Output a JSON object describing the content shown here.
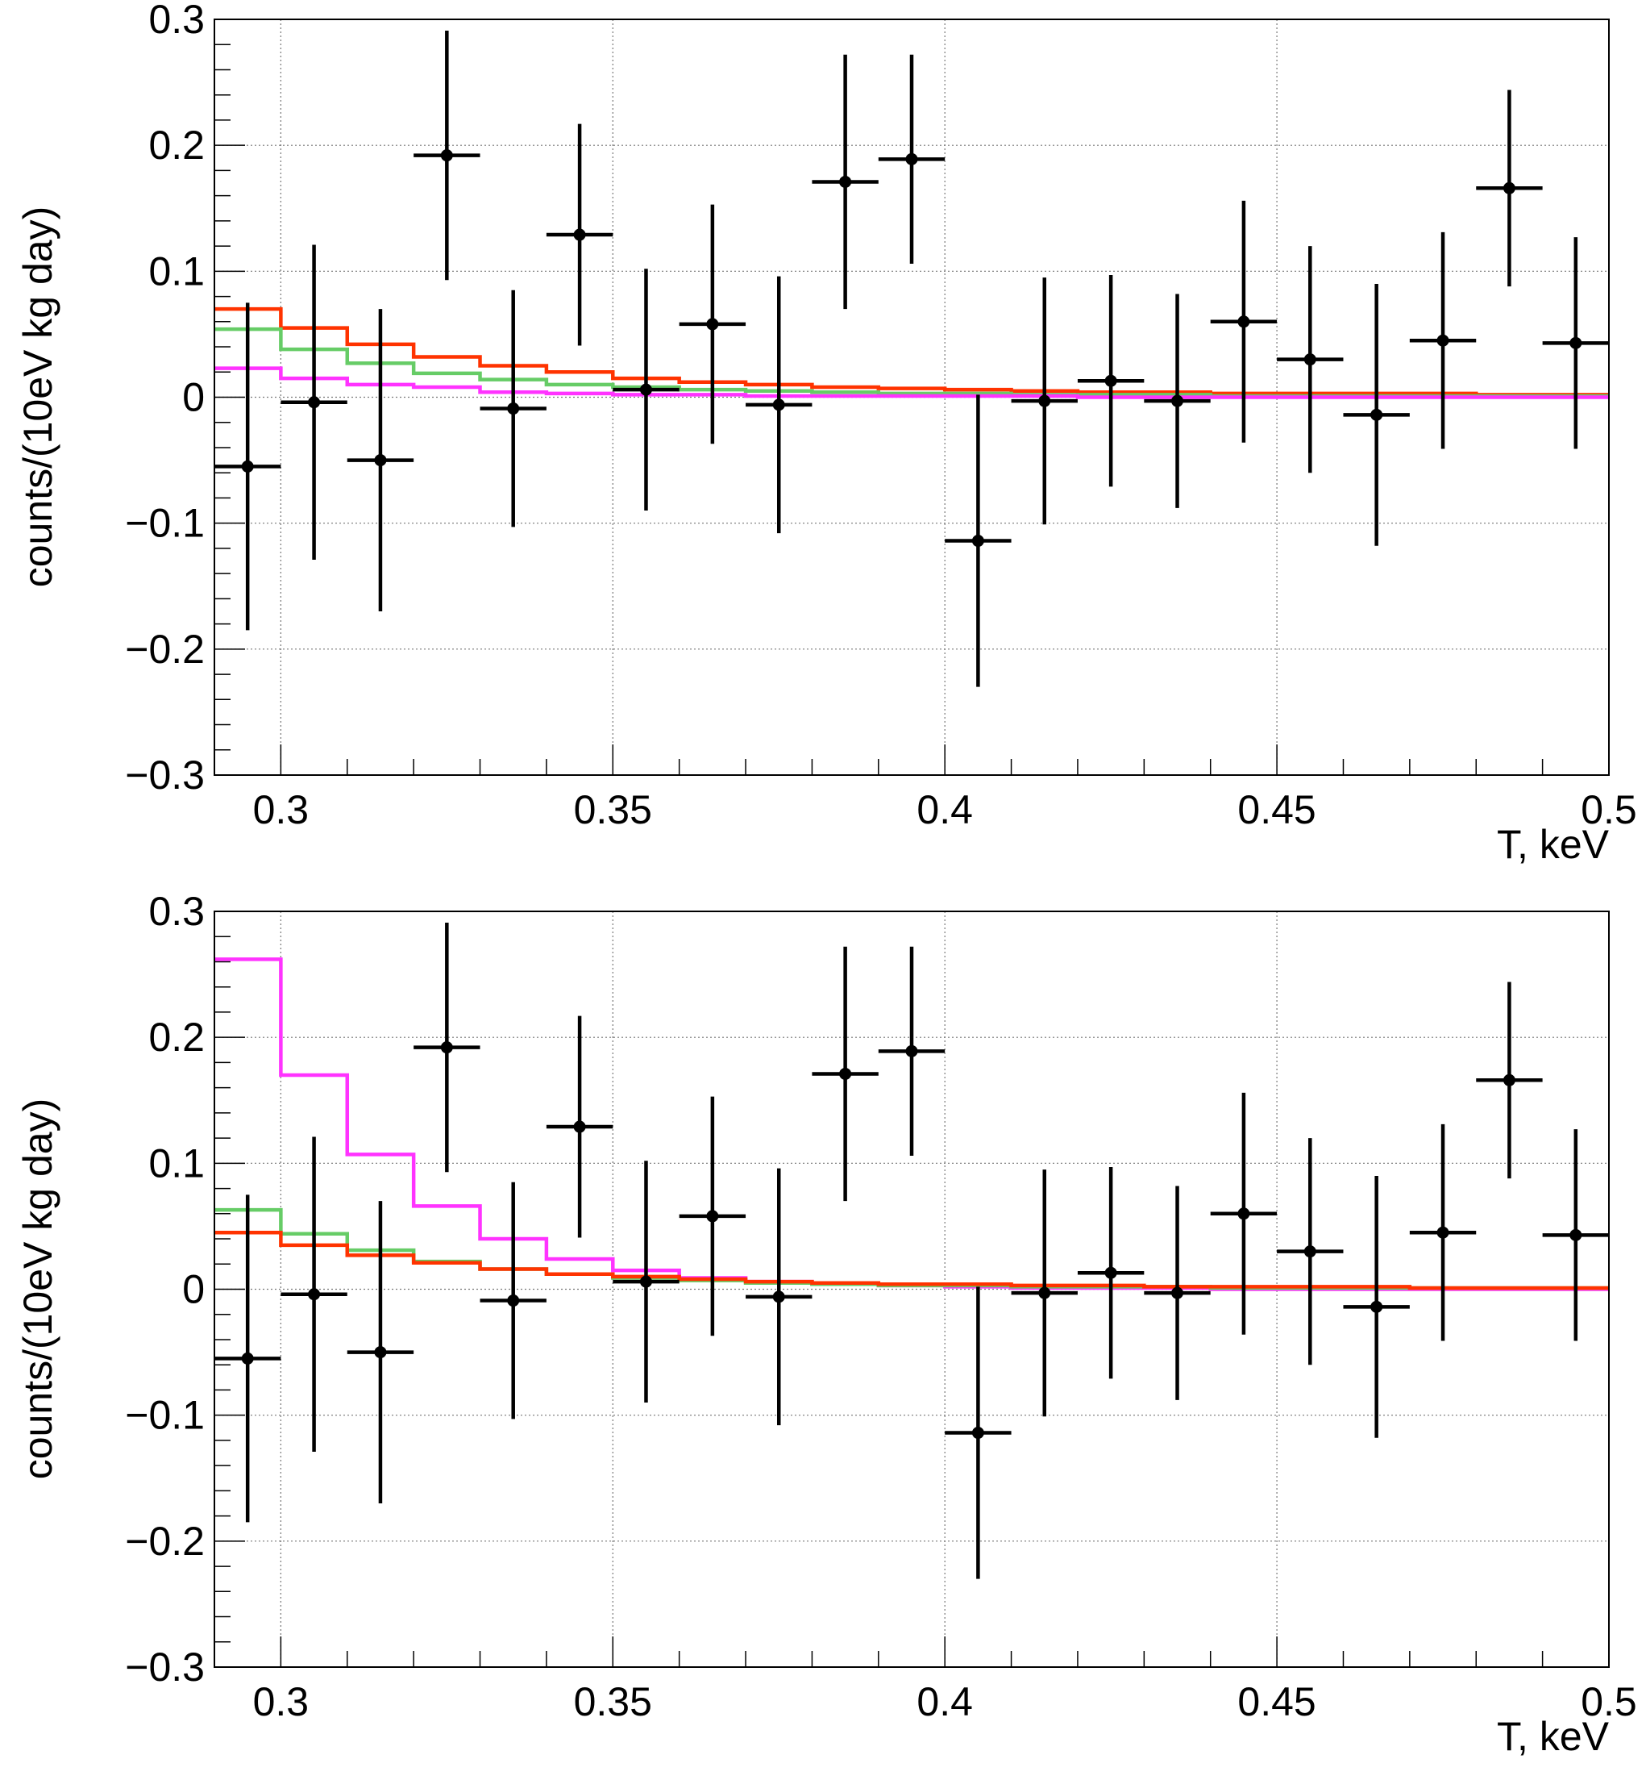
{
  "chart_data": [
    {
      "type": "line",
      "panel": "top",
      "xlabel": "T, keV",
      "ylabel": "counts/(10eV kg day)",
      "xlim": [
        0.29,
        0.5
      ],
      "ylim": [
        -0.3,
        0.3
      ],
      "xticks": [
        0.3,
        0.35,
        0.4,
        0.45,
        0.5
      ],
      "xtick_labels": [
        "0.3",
        "0.35",
        "0.4",
        "0.45",
        "0.5"
      ],
      "yticks": [
        -0.3,
        -0.2,
        -0.1,
        0,
        0.1,
        0.2,
        0.3
      ],
      "ytick_labels": [
        "−0.3",
        "−0.2",
        "−0.1",
        "0",
        "0.1",
        "0.2",
        "0.3"
      ],
      "grid": true,
      "points": {
        "x": [
          0.295,
          0.305,
          0.315,
          0.325,
          0.335,
          0.345,
          0.355,
          0.365,
          0.375,
          0.385,
          0.395,
          0.405,
          0.415,
          0.425,
          0.435,
          0.445,
          0.455,
          0.465,
          0.475,
          0.485,
          0.495
        ],
        "xerr_low": [
          0.005,
          0.005,
          0.005,
          0.005,
          0.005,
          0.005,
          0.005,
          0.005,
          0.005,
          0.005,
          0.005,
          0.005,
          0.005,
          0.005,
          0.005,
          0.005,
          0.005,
          0.005,
          0.005,
          0.005,
          0.005
        ],
        "y": [
          -0.055,
          -0.004,
          -0.05,
          0.192,
          -0.009,
          0.129,
          0.006,
          0.058,
          -0.006,
          0.171,
          0.189,
          -0.114,
          -0.003,
          0.013,
          -0.003,
          0.06,
          0.03,
          -0.014,
          0.045,
          0.166,
          0.043
        ],
        "yerr_low": [
          0.13,
          0.125,
          0.12,
          0.099,
          0.094,
          0.088,
          0.096,
          0.095,
          0.102,
          0.101,
          0.083,
          0.116,
          0.098,
          0.084,
          0.085,
          0.096,
          0.09,
          0.104,
          0.086,
          0.078,
          0.084
        ],
        "yerr_high": [
          0.13,
          0.125,
          0.12,
          0.099,
          0.094,
          0.088,
          0.096,
          0.095,
          0.102,
          0.101,
          0.083,
          0.116,
          0.098,
          0.084,
          0.085,
          0.096,
          0.09,
          0.104,
          0.086,
          0.078,
          0.084
        ]
      },
      "series": [
        {
          "color": "#ff3300",
          "edges": [
            0.29,
            0.3,
            0.31,
            0.32,
            0.33,
            0.34,
            0.35,
            0.36,
            0.37,
            0.38,
            0.39,
            0.4,
            0.41,
            0.42,
            0.43,
            0.44,
            0.45,
            0.46,
            0.47,
            0.48,
            0.49,
            0.5
          ],
          "values": [
            0.07,
            0.055,
            0.042,
            0.032,
            0.025,
            0.02,
            0.015,
            0.012,
            0.01,
            0.008,
            0.007,
            0.006,
            0.005,
            0.004,
            0.004,
            0.003,
            0.003,
            0.003,
            0.003,
            0.002,
            0.002
          ]
        },
        {
          "color": "#66cc66",
          "edges": [
            0.29,
            0.3,
            0.31,
            0.32,
            0.33,
            0.34,
            0.35,
            0.36,
            0.37,
            0.38,
            0.39,
            0.4,
            0.41,
            0.42,
            0.43,
            0.44,
            0.45,
            0.46,
            0.47,
            0.48,
            0.49,
            0.5
          ],
          "values": [
            0.054,
            0.038,
            0.027,
            0.019,
            0.014,
            0.01,
            0.008,
            0.006,
            0.005,
            0.004,
            0.003,
            0.003,
            0.002,
            0.002,
            0.002,
            0.001,
            0.001,
            0.001,
            0.001,
            0.001,
            0.001
          ]
        },
        {
          "color": "#ff33ff",
          "edges": [
            0.29,
            0.3,
            0.31,
            0.32,
            0.33,
            0.34,
            0.35,
            0.36,
            0.37,
            0.38,
            0.39,
            0.4,
            0.41,
            0.42,
            0.43,
            0.44,
            0.45,
            0.46,
            0.47,
            0.48,
            0.49,
            0.5
          ],
          "values": [
            0.023,
            0.015,
            0.01,
            0.008,
            0.004,
            0.003,
            0.002,
            0.002,
            0.001,
            0.001,
            0.001,
            0.001,
            0.001,
            0.0,
            0.0,
            0.0,
            0.0,
            0.0,
            0.0,
            0.0,
            0.0
          ]
        }
      ]
    },
    {
      "type": "line",
      "panel": "bottom",
      "xlabel": "T, keV",
      "ylabel": "counts/(10eV kg day)",
      "xlim": [
        0.29,
        0.5
      ],
      "ylim": [
        -0.3,
        0.3
      ],
      "xticks": [
        0.3,
        0.35,
        0.4,
        0.45,
        0.5
      ],
      "xtick_labels": [
        "0.3",
        "0.35",
        "0.4",
        "0.45",
        "0.5"
      ],
      "yticks": [
        -0.3,
        -0.2,
        -0.1,
        0,
        0.1,
        0.2,
        0.3
      ],
      "ytick_labels": [
        "−0.3",
        "−0.2",
        "−0.1",
        "0",
        "0.1",
        "0.2",
        "0.3"
      ],
      "grid": true,
      "points": {
        "x": [
          0.295,
          0.305,
          0.315,
          0.325,
          0.335,
          0.345,
          0.355,
          0.365,
          0.375,
          0.385,
          0.395,
          0.405,
          0.415,
          0.425,
          0.435,
          0.445,
          0.455,
          0.465,
          0.475,
          0.485,
          0.495
        ],
        "xerr_low": [
          0.005,
          0.005,
          0.005,
          0.005,
          0.005,
          0.005,
          0.005,
          0.005,
          0.005,
          0.005,
          0.005,
          0.005,
          0.005,
          0.005,
          0.005,
          0.005,
          0.005,
          0.005,
          0.005,
          0.005,
          0.005
        ],
        "y": [
          -0.055,
          -0.004,
          -0.05,
          0.192,
          -0.009,
          0.129,
          0.006,
          0.058,
          -0.006,
          0.171,
          0.189,
          -0.114,
          -0.003,
          0.013,
          -0.003,
          0.06,
          0.03,
          -0.014,
          0.045,
          0.166,
          0.043
        ],
        "yerr_low": [
          0.13,
          0.125,
          0.12,
          0.099,
          0.094,
          0.088,
          0.096,
          0.095,
          0.102,
          0.101,
          0.083,
          0.116,
          0.098,
          0.084,
          0.085,
          0.096,
          0.09,
          0.104,
          0.086,
          0.078,
          0.084
        ],
        "yerr_high": [
          0.13,
          0.125,
          0.12,
          0.099,
          0.094,
          0.088,
          0.096,
          0.095,
          0.102,
          0.101,
          0.083,
          0.116,
          0.098,
          0.084,
          0.085,
          0.096,
          0.09,
          0.104,
          0.086,
          0.078,
          0.084
        ]
      },
      "series": [
        {
          "color": "#ff33ff",
          "edges": [
            0.29,
            0.3,
            0.31,
            0.32,
            0.33,
            0.34,
            0.35,
            0.36,
            0.37,
            0.38,
            0.39,
            0.4,
            0.41,
            0.42,
            0.43,
            0.44,
            0.45,
            0.46,
            0.47,
            0.48,
            0.49,
            0.5
          ],
          "values": [
            0.262,
            0.17,
            0.107,
            0.066,
            0.04,
            0.024,
            0.015,
            0.009,
            0.006,
            0.004,
            0.003,
            0.002,
            0.001,
            0.001,
            0.001,
            0.0,
            0.0,
            0.0,
            0.0,
            0.0,
            0.0
          ]
        },
        {
          "color": "#66cc66",
          "edges": [
            0.29,
            0.3,
            0.31,
            0.32,
            0.33,
            0.34,
            0.35,
            0.36,
            0.37,
            0.38,
            0.39,
            0.4,
            0.41,
            0.42,
            0.43,
            0.44,
            0.45,
            0.46,
            0.47,
            0.48,
            0.49,
            0.5
          ],
          "values": [
            0.063,
            0.044,
            0.031,
            0.022,
            0.016,
            0.012,
            0.009,
            0.007,
            0.005,
            0.004,
            0.003,
            0.003,
            0.002,
            0.002,
            0.002,
            0.001,
            0.001,
            0.001,
            0.001,
            0.001,
            0.001
          ]
        },
        {
          "color": "#ff3300",
          "edges": [
            0.29,
            0.3,
            0.31,
            0.32,
            0.33,
            0.34,
            0.35,
            0.36,
            0.37,
            0.38,
            0.39,
            0.4,
            0.41,
            0.42,
            0.43,
            0.44,
            0.45,
            0.46,
            0.47,
            0.48,
            0.49,
            0.5
          ],
          "values": [
            0.045,
            0.035,
            0.027,
            0.021,
            0.016,
            0.012,
            0.01,
            0.008,
            0.006,
            0.005,
            0.004,
            0.004,
            0.003,
            0.003,
            0.002,
            0.002,
            0.002,
            0.002,
            0.001,
            0.001,
            0.001
          ]
        }
      ]
    }
  ]
}
